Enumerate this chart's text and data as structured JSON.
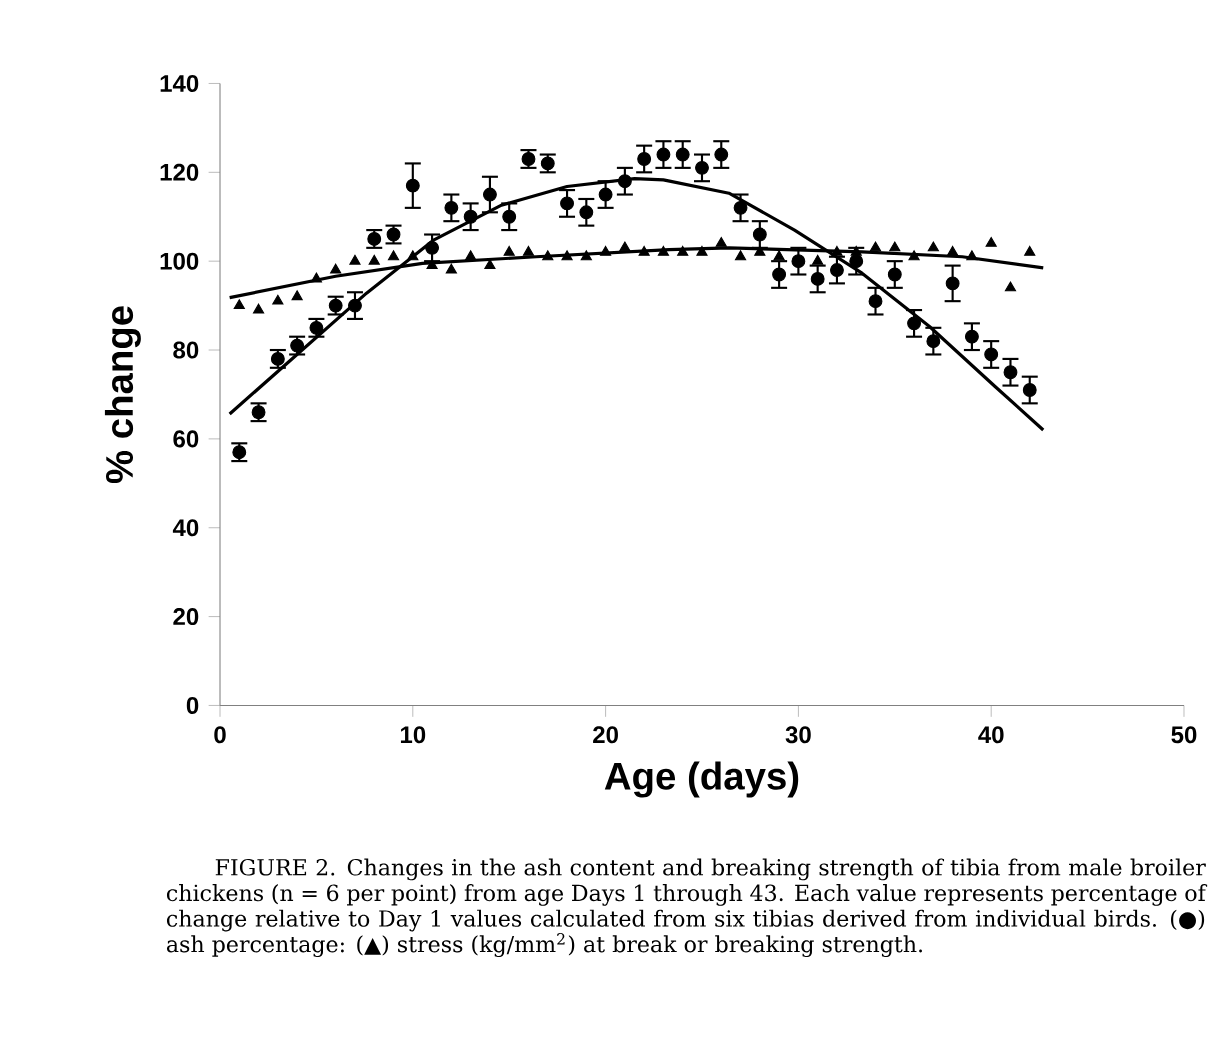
{
  "chart_data": {
    "type": "scatter",
    "xlabel": "Age (days)",
    "ylabel": "% change",
    "xlim": [
      0,
      50
    ],
    "ylim": [
      0,
      140
    ],
    "xticks": [
      0,
      10,
      20,
      30,
      40,
      50
    ],
    "yticks": [
      0,
      20,
      40,
      60,
      80,
      100,
      120,
      140
    ],
    "series": [
      {
        "marker": "circle",
        "color": "#000000",
        "x": [
          1,
          2,
          3,
          4,
          5,
          6,
          7,
          8,
          9,
          10,
          11,
          12,
          13,
          14,
          15,
          16,
          17,
          18,
          19,
          20,
          21,
          22,
          23,
          24,
          25,
          26,
          27,
          28,
          29,
          30,
          31,
          32,
          33,
          34,
          35,
          36,
          37,
          38,
          39,
          40,
          41,
          42
        ],
        "values": [
          57,
          66,
          78,
          81,
          85,
          90,
          90,
          105,
          106,
          117,
          103,
          112,
          110,
          115,
          110,
          123,
          122,
          113,
          111,
          115,
          118,
          123,
          124,
          124,
          121,
          124,
          112,
          106,
          97,
          100,
          96,
          98,
          100,
          91,
          97,
          86,
          82,
          95,
          83,
          79,
          75,
          71
        ],
        "errors": [
          2,
          2,
          2,
          2,
          2,
          2,
          3,
          2,
          2,
          5,
          3,
          3,
          3,
          4,
          3,
          2,
          2,
          3,
          3,
          3,
          3,
          3,
          3,
          3,
          3,
          3,
          3,
          3,
          3,
          3,
          3,
          3,
          3,
          3,
          3,
          3,
          3,
          4,
          3,
          3,
          3,
          3
        ]
      },
      {
        "marker": "triangle",
        "color": "#000000",
        "x": [
          1,
          2,
          3,
          4,
          5,
          6,
          7,
          8,
          9,
          10,
          11,
          12,
          13,
          14,
          15,
          16,
          17,
          18,
          19,
          20,
          21,
          22,
          23,
          24,
          25,
          26,
          27,
          28,
          29,
          30,
          31,
          32,
          33,
          34,
          35,
          36,
          37,
          38,
          39,
          40,
          41,
          42
        ],
        "values": [
          90,
          89,
          91,
          92,
          96,
          98,
          100,
          100,
          101,
          101,
          99,
          98,
          101,
          99,
          102,
          102,
          101,
          101,
          101,
          102,
          103,
          102,
          102,
          102,
          102,
          104,
          101,
          102,
          101,
          null,
          100,
          102,
          102,
          103,
          103,
          101,
          103,
          102,
          101,
          104,
          94,
          102
        ]
      },
      {
        "type": "line",
        "marker": "none",
        "color": "#000000",
        "x": [
          0.5,
          7.6,
          11.1,
          14.6,
          18,
          21.5,
          23,
          26.4,
          29.8,
          33.3,
          36.8,
          40.2,
          42.7
        ],
        "values": [
          65.6,
          92.8,
          104.8,
          112.6,
          116.8,
          118.6,
          118.3,
          115.3,
          107,
          97.3,
          85.3,
          71.8,
          62
        ]
      },
      {
        "type": "line",
        "marker": "none",
        "color": "#000000",
        "x": [
          0.5,
          6,
          10.5,
          16.4,
          23.3,
          26.4,
          33.3,
          38.5,
          42.7
        ],
        "values": [
          91.8,
          96.6,
          99.5,
          101,
          102.6,
          103,
          102.1,
          101,
          98.5
        ]
      }
    ],
    "annotations": [
      "FIGURE 2. Changes in the ash content and breaking strength of tibia from male broiler chickens (n = 6 per point) from age Days 1 through 43. Each value represents percentage of change relative to Day 1 values calculated from six tibias derived from individual birds. (●) ash percentage: (▲) stress (kg/mm$^{2}$) at break or breaking strength."
    ]
  }
}
